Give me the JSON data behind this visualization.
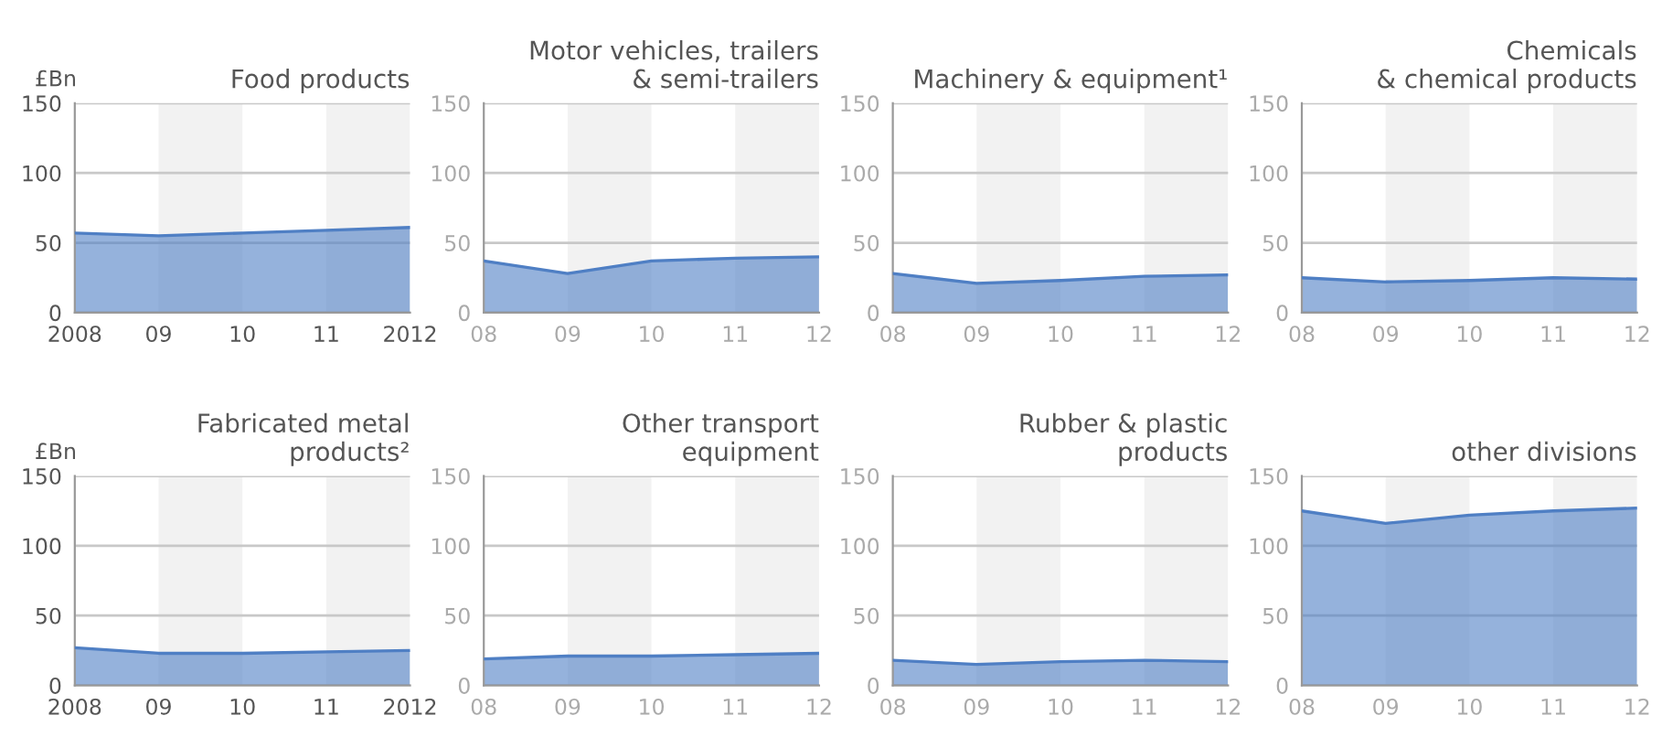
{
  "chart_data": [
    {
      "type": "area",
      "title": "Food products",
      "ylabel": "£Bn",
      "x": [
        2008,
        2009,
        2010,
        2011,
        2012
      ],
      "series": [
        {
          "color": "#4f7fc4",
          "values": [
            57,
            55,
            57,
            59,
            61
          ]
        }
      ],
      "xlim": [
        2008,
        2012
      ],
      "xticks": [
        2008,
        {
          "value": 2009,
          "label": "09"
        },
        {
          "value": 2010,
          "label": "10"
        },
        {
          "value": 2011,
          "label": "11"
        },
        2012
      ],
      "ylim": [
        0,
        150
      ],
      "yticks": [
        0,
        50,
        100,
        150
      ],
      "grid": "y",
      "bands": [
        {
          "axis": "x",
          "from": 2009,
          "to": 2010,
          "color": "#f2f2f2"
        },
        {
          "axis": "x",
          "from": 2011,
          "to": 2012,
          "color": "#f2f2f2"
        }
      ]
    },
    {
      "type": "area",
      "title": "Motor vehicles, trailers\n& semi-trailers",
      "x": [
        2008,
        2009,
        2010,
        2011,
        2012
      ],
      "series": [
        {
          "color": "#4f7fc4",
          "values": [
            37,
            28,
            37,
            39,
            40
          ]
        }
      ],
      "xlim": [
        2008,
        2012
      ],
      "xticks": [
        {
          "value": 2008,
          "label": "08"
        },
        {
          "value": 2009,
          "label": "09"
        },
        {
          "value": 2010,
          "label": "10"
        },
        {
          "value": 2011,
          "label": "11"
        },
        {
          "value": 2012,
          "label": "12"
        }
      ],
      "ylim": [
        0,
        150
      ],
      "yticks": [
        0,
        50,
        100,
        150
      ],
      "grid": "y",
      "bands": [
        {
          "axis": "x",
          "from": 2009,
          "to": 2010,
          "color": "#f2f2f2"
        },
        {
          "axis": "x",
          "from": 2011,
          "to": 2012,
          "color": "#f2f2f2"
        }
      ]
    },
    {
      "type": "area",
      "title": "Machinery & equipment¹",
      "x": [
        2008,
        2009,
        2010,
        2011,
        2012
      ],
      "series": [
        {
          "color": "#4f7fc4",
          "values": [
            28,
            21,
            23,
            26,
            27
          ]
        }
      ],
      "xlim": [
        2008,
        2012
      ],
      "xticks": [
        {
          "value": 2008,
          "label": "08"
        },
        {
          "value": 2009,
          "label": "09"
        },
        {
          "value": 2010,
          "label": "10"
        },
        {
          "value": 2011,
          "label": "11"
        },
        {
          "value": 2012,
          "label": "12"
        }
      ],
      "ylim": [
        0,
        150
      ],
      "yticks": [
        0,
        50,
        100,
        150
      ],
      "grid": "y",
      "bands": [
        {
          "axis": "x",
          "from": 2009,
          "to": 2010,
          "color": "#f2f2f2"
        },
        {
          "axis": "x",
          "from": 2011,
          "to": 2012,
          "color": "#f2f2f2"
        }
      ]
    },
    {
      "type": "area",
      "title": "Chemicals\n& chemical products",
      "x": [
        2008,
        2009,
        2010,
        2011,
        2012
      ],
      "series": [
        {
          "color": "#4f7fc4",
          "values": [
            25,
            22,
            23,
            25,
            24
          ]
        }
      ],
      "xlim": [
        2008,
        2012
      ],
      "xticks": [
        {
          "value": 2008,
          "label": "08"
        },
        {
          "value": 2009,
          "label": "09"
        },
        {
          "value": 2010,
          "label": "10"
        },
        {
          "value": 2011,
          "label": "11"
        },
        {
          "value": 2012,
          "label": "12"
        }
      ],
      "ylim": [
        0,
        150
      ],
      "yticks": [
        0,
        50,
        100,
        150
      ],
      "grid": "y",
      "bands": [
        {
          "axis": "x",
          "from": 2009,
          "to": 2010,
          "color": "#f2f2f2"
        },
        {
          "axis": "x",
          "from": 2011,
          "to": 2012,
          "color": "#f2f2f2"
        }
      ]
    },
    {
      "type": "area",
      "title": "Fabricated metal\nproducts²",
      "ylabel": "£Bn",
      "x": [
        2008,
        2009,
        2010,
        2011,
        2012
      ],
      "series": [
        {
          "color": "#4f7fc4",
          "values": [
            27,
            23,
            23,
            24,
            25
          ]
        }
      ],
      "xlim": [
        2008,
        2012
      ],
      "xticks": [
        2008,
        {
          "value": 2009,
          "label": "09"
        },
        {
          "value": 2010,
          "label": "10"
        },
        {
          "value": 2011,
          "label": "11"
        },
        2012
      ],
      "ylim": [
        0,
        150
      ],
      "yticks": [
        0,
        50,
        100,
        150
      ],
      "grid": "y",
      "bands": [
        {
          "axis": "x",
          "from": 2009,
          "to": 2010,
          "color": "#f2f2f2"
        },
        {
          "axis": "x",
          "from": 2011,
          "to": 2012,
          "color": "#f2f2f2"
        }
      ]
    },
    {
      "type": "area",
      "title": "Other transport\nequipment",
      "x": [
        2008,
        2009,
        2010,
        2011,
        2012
      ],
      "series": [
        {
          "color": "#4f7fc4",
          "values": [
            19,
            21,
            21,
            22,
            23
          ]
        }
      ],
      "xlim": [
        2008,
        2012
      ],
      "xticks": [
        {
          "value": 2008,
          "label": "08"
        },
        {
          "value": 2009,
          "label": "09"
        },
        {
          "value": 2010,
          "label": "10"
        },
        {
          "value": 2011,
          "label": "11"
        },
        {
          "value": 2012,
          "label": "12"
        }
      ],
      "ylim": [
        0,
        150
      ],
      "yticks": [
        0,
        50,
        100,
        150
      ],
      "grid": "y",
      "bands": [
        {
          "axis": "x",
          "from": 2009,
          "to": 2010,
          "color": "#f2f2f2"
        },
        {
          "axis": "x",
          "from": 2011,
          "to": 2012,
          "color": "#f2f2f2"
        }
      ]
    },
    {
      "type": "area",
      "title": "Rubber & plastic\nproducts",
      "x": [
        2008,
        2009,
        2010,
        2011,
        2012
      ],
      "series": [
        {
          "color": "#4f7fc4",
          "values": [
            18,
            15,
            17,
            18,
            17
          ]
        }
      ],
      "xlim": [
        2008,
        2012
      ],
      "xticks": [
        {
          "value": 2008,
          "label": "08"
        },
        {
          "value": 2009,
          "label": "09"
        },
        {
          "value": 2010,
          "label": "10"
        },
        {
          "value": 2011,
          "label": "11"
        },
        {
          "value": 2012,
          "label": "12"
        }
      ],
      "ylim": [
        0,
        150
      ],
      "yticks": [
        0,
        50,
        100,
        150
      ],
      "grid": "y",
      "bands": [
        {
          "axis": "x",
          "from": 2009,
          "to": 2010,
          "color": "#f2f2f2"
        },
        {
          "axis": "x",
          "from": 2011,
          "to": 2012,
          "color": "#f2f2f2"
        }
      ]
    },
    {
      "type": "area",
      "title": "other divisions",
      "x": [
        2008,
        2009,
        2010,
        2011,
        2012
      ],
      "series": [
        {
          "color": "#4f7fc4",
          "values": [
            125,
            116,
            122,
            125,
            127
          ]
        }
      ],
      "xlim": [
        2008,
        2012
      ],
      "xticks": [
        {
          "value": 2008,
          "label": "08"
        },
        {
          "value": 2009,
          "label": "09"
        },
        {
          "value": 2010,
          "label": "10"
        },
        {
          "value": 2011,
          "label": "11"
        },
        {
          "value": 2012,
          "label": "12"
        }
      ],
      "ylim": [
        0,
        150
      ],
      "yticks": [
        0,
        50,
        100,
        150
      ],
      "grid": "y",
      "bands": [
        {
          "axis": "x",
          "from": 2009,
          "to": 2010,
          "color": "#f2f2f2"
        },
        {
          "axis": "x",
          "from": 2011,
          "to": 2012,
          "color": "#f2f2f2"
        }
      ]
    }
  ]
}
